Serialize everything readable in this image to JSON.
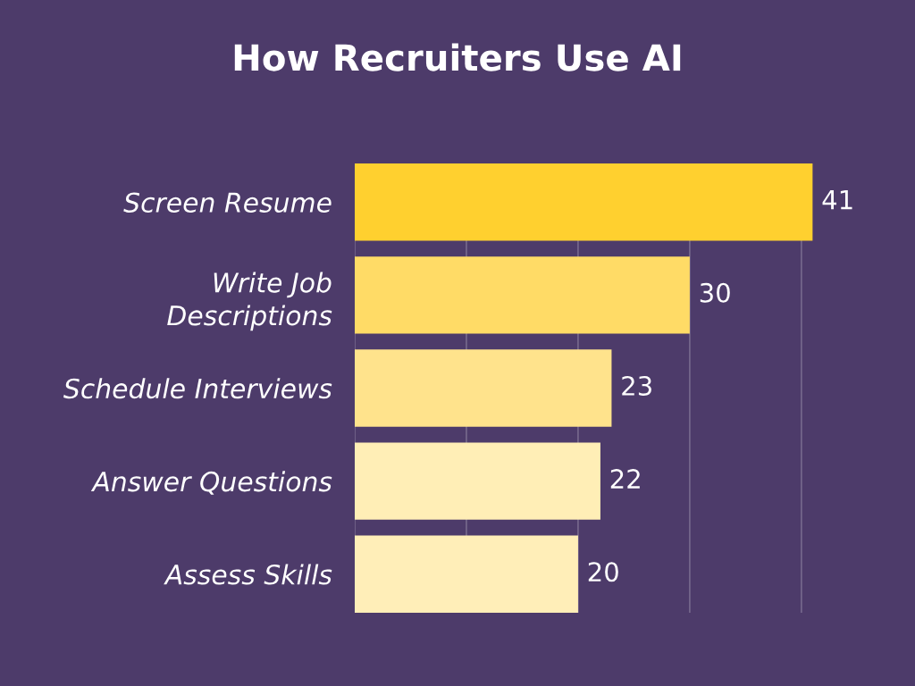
{
  "chart_data": {
    "type": "bar",
    "orientation": "horizontal",
    "title": "How Recruiters Use AI",
    "categories": [
      "Screen Resume",
      "Write Job\nDescriptions",
      "Schedule Interviews",
      "Answer Questions",
      "Assess Skills"
    ],
    "values": [
      41,
      30,
      23,
      22,
      20
    ],
    "colors": [
      "#ffd02f",
      "#ffdb66",
      "#ffe38c",
      "#ffeeb6",
      "#ffeeb8"
    ],
    "xticks": [
      {
        "value": 0,
        "label": null
      },
      {
        "value": 10,
        "label": null
      },
      {
        "value": 20,
        "label": null
      },
      {
        "value": 30,
        "label": null
      },
      {
        "value": 40,
        "label": null
      }
    ],
    "grid": "x",
    "tick_labels": "y",
    "data_labels": true
  }
}
